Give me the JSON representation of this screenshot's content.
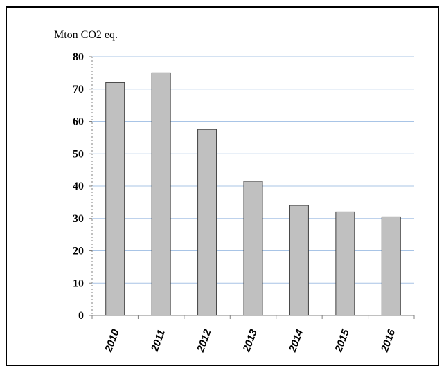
{
  "chart_data": {
    "type": "bar",
    "title": "",
    "unit_label": "Mton CO2 eq.",
    "xlabel": "",
    "ylabel": "",
    "categories": [
      "2010",
      "2011",
      "2012",
      "2013",
      "2014",
      "2015",
      "2016"
    ],
    "values": [
      72,
      75,
      57.5,
      41.5,
      34,
      32,
      30.5
    ],
    "ylim": [
      0,
      80
    ],
    "yticks": [
      "0",
      "10",
      "20",
      "30",
      "40",
      "50",
      "60",
      "70",
      "80"
    ],
    "grid": true,
    "legend": "none",
    "colors": {
      "bar_fill": "#c0c0c0",
      "bar_stroke": "#404040",
      "gridline": "#a8c4e6",
      "axis": "#808080",
      "text": "#000000"
    }
  }
}
